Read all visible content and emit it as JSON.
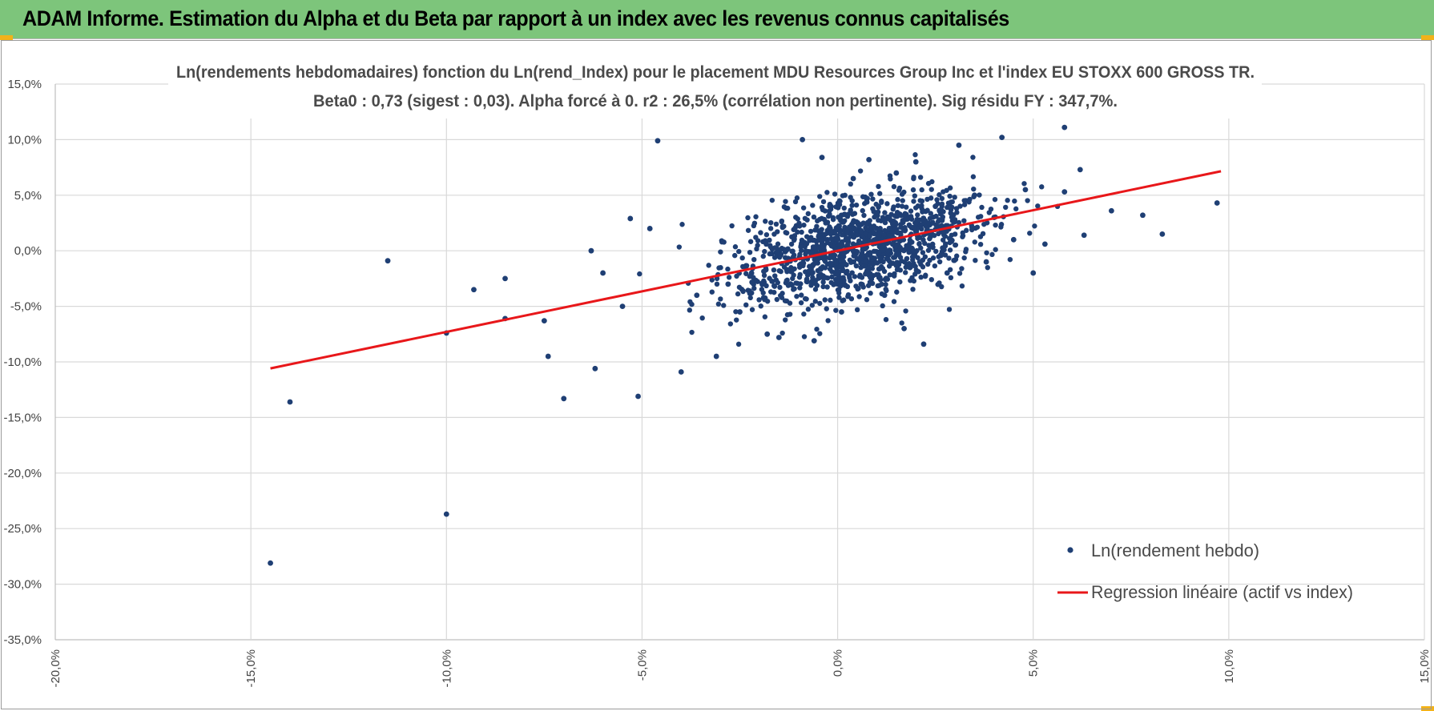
{
  "header": {
    "title": "ADAM Informe. Estimation du Alpha et du Beta par rapport à un index avec les revenus connus capitalisés",
    "background": "#7dc57b"
  },
  "chart_data": {
    "type": "scatter",
    "title_line1": "Ln(rendements hebdomadaires) fonction du Ln(rend_Index) pour le placement MDU Resources Group Inc et l'index EU STOXX 600 GROSS TR.",
    "title_line2": "Beta0 : 0,73 (sigest : 0,03).  Alpha forcé à 0. r2 : 26,5% (corrélation non pertinente). Sig résidu FY : 347,7%.",
    "xlabel": "",
    "ylabel": "",
    "xlim": [
      -0.2,
      0.15
    ],
    "ylim": [
      -0.35,
      0.15
    ],
    "x_ticks": [
      "-20,0%",
      "-15,0%",
      "-10,0%",
      "-5,0%",
      "0,0%",
      "5,0%",
      "10,0%",
      "15,0%"
    ],
    "y_ticks": [
      "15,0%",
      "10,0%",
      "5,0%",
      "0,0%",
      "-5,0%",
      "-10,0%",
      "-15,0%",
      "-20,0%",
      "-25,0%",
      "-30,0%",
      "-35,0%"
    ],
    "grid": true,
    "legend_position": "bottom-right",
    "colors": {
      "points": "#1f3f74",
      "regression": "#e8171a"
    },
    "series": [
      {
        "name": "Ln(rendement hebdo)",
        "kind": "scatter",
        "points_shown": [
          [
            -0.145,
            -0.281
          ],
          [
            -0.14,
            -0.136
          ],
          [
            -0.115,
            -0.009
          ],
          [
            -0.1,
            -0.237
          ],
          [
            -0.1,
            -0.074
          ],
          [
            -0.093,
            -0.035
          ],
          [
            -0.085,
            -0.025
          ],
          [
            -0.085,
            -0.061
          ],
          [
            -0.075,
            -0.063
          ],
          [
            -0.074,
            -0.095
          ],
          [
            -0.07,
            -0.133
          ],
          [
            -0.063,
            0.0
          ],
          [
            -0.062,
            -0.106
          ],
          [
            -0.06,
            -0.02
          ],
          [
            -0.055,
            -0.05
          ],
          [
            -0.053,
            0.029
          ],
          [
            -0.051,
            -0.131
          ],
          [
            -0.048,
            0.02
          ],
          [
            -0.046,
            0.099
          ],
          [
            -0.04,
            -0.109
          ],
          [
            -0.036,
            -0.04
          ],
          [
            -0.031,
            -0.095
          ],
          [
            -0.028,
            -0.03
          ],
          [
            -0.025,
            -0.055
          ],
          [
            -0.022,
            -0.02
          ],
          [
            -0.018,
            -0.075
          ],
          [
            -0.015,
            -0.078
          ],
          [
            -0.012,
            -0.03
          ],
          [
            -0.009,
            0.1
          ],
          [
            -0.006,
            -0.081
          ],
          [
            -0.004,
            0.084
          ],
          [
            -0.002,
            0.04
          ],
          [
            0.001,
            -0.055
          ],
          [
            0.004,
            0.065
          ],
          [
            0.006,
            -0.03
          ],
          [
            0.008,
            0.082
          ],
          [
            0.01,
            0.02
          ],
          [
            0.012,
            -0.04
          ],
          [
            0.015,
            0.07
          ],
          [
            0.017,
            -0.07
          ],
          [
            0.02,
            0.08
          ],
          [
            0.022,
            -0.084
          ],
          [
            0.025,
            0.04
          ],
          [
            0.028,
            -0.02
          ],
          [
            0.031,
            0.095
          ],
          [
            0.035,
            0.05
          ],
          [
            0.038,
            -0.01
          ],
          [
            0.04,
            0.03
          ],
          [
            0.042,
            0.102
          ],
          [
            0.045,
            0.01
          ],
          [
            0.048,
            0.055
          ],
          [
            0.05,
            -0.02
          ],
          [
            0.053,
            0.006
          ],
          [
            0.058,
            0.053
          ],
          [
            0.058,
            0.111
          ],
          [
            0.062,
            0.073
          ],
          [
            0.063,
            0.014
          ],
          [
            0.07,
            0.036
          ],
          [
            0.078,
            0.032
          ],
          [
            0.083,
            0.015
          ],
          [
            0.097,
            0.043
          ]
        ]
      },
      {
        "name": "Regression linéaire (actif vs index)",
        "kind": "line",
        "beta": 0.73,
        "x_range": [
          -0.145,
          0.098
        ]
      }
    ]
  }
}
